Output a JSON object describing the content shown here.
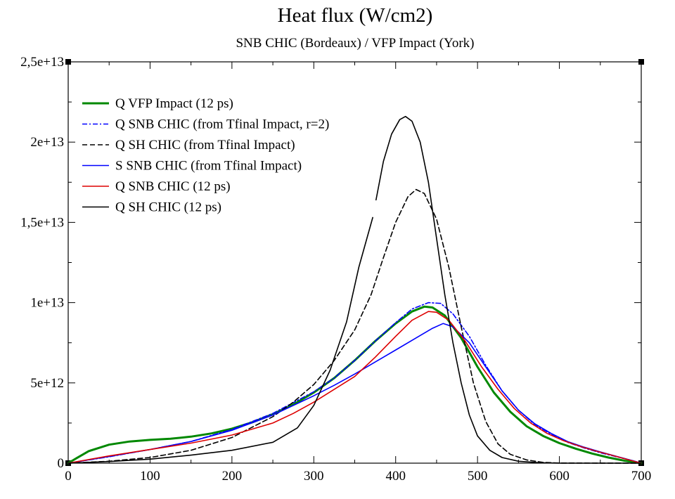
{
  "chart_data": {
    "type": "line",
    "title": "Heat flux (W/cm2)",
    "subtitle": "SNB CHIC (Bordeaux) / VFP Impact (York)",
    "xlabel": "",
    "ylabel": "",
    "xlim": [
      0,
      700
    ],
    "ylim": [
      0,
      25000000000000.0
    ],
    "x_ticks": [
      {
        "value": 0,
        "label": "0"
      },
      {
        "value": 100,
        "label": "100"
      },
      {
        "value": 200,
        "label": "200"
      },
      {
        "value": 300,
        "label": "300"
      },
      {
        "value": 400,
        "label": "400"
      },
      {
        "value": 500,
        "label": "500"
      },
      {
        "value": 600,
        "label": "600"
      },
      {
        "value": 700,
        "label": "700"
      }
    ],
    "y_ticks": [
      {
        "value": 0,
        "label": "0"
      },
      {
        "value": 5000000000000.0,
        "label": "5e+12"
      },
      {
        "value": 10000000000000.0,
        "label": "1e+13"
      },
      {
        "value": 15000000000000.0,
        "label": "1,5e+13"
      },
      {
        "value": 20000000000000.0,
        "label": "2e+13"
      },
      {
        "value": 25000000000000.0,
        "label": "2,5e+13"
      }
    ],
    "grid": false,
    "legend_position": "top-left",
    "series": [
      {
        "name": "Q VFP Impact (12 ps)",
        "color": "#008800",
        "dash": "",
        "width": 3,
        "points": [
          [
            0,
            0
          ],
          [
            10,
            300000000000.0
          ],
          [
            25,
            750000000000.0
          ],
          [
            50,
            1150000000000.0
          ],
          [
            75,
            1350000000000.0
          ],
          [
            100,
            1450000000000.0
          ],
          [
            125,
            1520000000000.0
          ],
          [
            150,
            1650000000000.0
          ],
          [
            175,
            1850000000000.0
          ],
          [
            200,
            2150000000000.0
          ],
          [
            225,
            2550000000000.0
          ],
          [
            250,
            3050000000000.0
          ],
          [
            275,
            3650000000000.0
          ],
          [
            300,
            4400000000000.0
          ],
          [
            325,
            5300000000000.0
          ],
          [
            350,
            6400000000000.0
          ],
          [
            375,
            7600000000000.0
          ],
          [
            400,
            8700000000000.0
          ],
          [
            420,
            9450000000000.0
          ],
          [
            435,
            9750000000000.0
          ],
          [
            445,
            9700000000000.0
          ],
          [
            460,
            9200000000000.0
          ],
          [
            480,
            7800000000000.0
          ],
          [
            500,
            6000000000000.0
          ],
          [
            520,
            4400000000000.0
          ],
          [
            540,
            3200000000000.0
          ],
          [
            560,
            2300000000000.0
          ],
          [
            580,
            1700000000000.0
          ],
          [
            600,
            1250000000000.0
          ],
          [
            620,
            900000000000.0
          ],
          [
            640,
            600000000000.0
          ],
          [
            660,
            350000000000.0
          ],
          [
            680,
            150000000000.0
          ],
          [
            700,
            0
          ]
        ]
      },
      {
        "name": "Q SNB CHIC (from Tfinal Impact, r=2)",
        "color": "#0000ff",
        "dash": "7,3,2,3",
        "width": 1.6,
        "points": [
          [
            0,
            0
          ],
          [
            50,
            400000000000.0
          ],
          [
            100,
            850000000000.0
          ],
          [
            150,
            1350000000000.0
          ],
          [
            200,
            2100000000000.0
          ],
          [
            250,
            3100000000000.0
          ],
          [
            300,
            4450000000000.0
          ],
          [
            325,
            5300000000000.0
          ],
          [
            350,
            6400000000000.0
          ],
          [
            375,
            7600000000000.0
          ],
          [
            400,
            8750000000000.0
          ],
          [
            420,
            9600000000000.0
          ],
          [
            440,
            10000000000000.0
          ],
          [
            455,
            9950000000000.0
          ],
          [
            470,
            9300000000000.0
          ],
          [
            490,
            7900000000000.0
          ],
          [
            510,
            6100000000000.0
          ],
          [
            530,
            4500000000000.0
          ],
          [
            550,
            3300000000000.0
          ],
          [
            570,
            2400000000000.0
          ],
          [
            590,
            1800000000000.0
          ],
          [
            610,
            1300000000000.0
          ],
          [
            630,
            950000000000.0
          ],
          [
            650,
            650000000000.0
          ],
          [
            670,
            400000000000.0
          ],
          [
            690,
            150000000000.0
          ],
          [
            700,
            0
          ]
        ]
      },
      {
        "name": "Q SH CHIC (from Tfinal Impact)",
        "color": "#000000",
        "dash": "7,4",
        "width": 1.6,
        "points": [
          [
            0,
            0
          ],
          [
            50,
            120000000000.0
          ],
          [
            100,
            350000000000.0
          ],
          [
            150,
            800000000000.0
          ],
          [
            200,
            1600000000000.0
          ],
          [
            250,
            2900000000000.0
          ],
          [
            275,
            3800000000000.0
          ],
          [
            300,
            4900000000000.0
          ],
          [
            325,
            6400000000000.0
          ],
          [
            350,
            8300000000000.0
          ],
          [
            370,
            10500000000000.0
          ],
          [
            385,
            12800000000000.0
          ],
          [
            400,
            15000000000000.0
          ],
          [
            415,
            16600000000000.0
          ],
          [
            425,
            17050000000000.0
          ],
          [
            435,
            16800000000000.0
          ],
          [
            450,
            15200000000000.0
          ],
          [
            465,
            12200000000000.0
          ],
          [
            480,
            8500000000000.0
          ],
          [
            495,
            5000000000000.0
          ],
          [
            510,
            2600000000000.0
          ],
          [
            525,
            1200000000000.0
          ],
          [
            540,
            550000000000.0
          ],
          [
            560,
            200000000000.0
          ],
          [
            580,
            50000000000.0
          ],
          [
            600,
            10000000000.0
          ],
          [
            700,
            0
          ]
        ]
      },
      {
        "name": "S SNB CHIC (from Tfinal Impact)",
        "color": "#0000ff",
        "dash": "",
        "width": 1.6,
        "points": [
          [
            0,
            0
          ],
          [
            50,
            420000000000.0
          ],
          [
            100,
            850000000000.0
          ],
          [
            150,
            1350000000000.0
          ],
          [
            200,
            2050000000000.0
          ],
          [
            250,
            3000000000000.0
          ],
          [
            300,
            4200000000000.0
          ],
          [
            325,
            4850000000000.0
          ],
          [
            350,
            5550000000000.0
          ],
          [
            375,
            6300000000000.0
          ],
          [
            400,
            7050000000000.0
          ],
          [
            425,
            7800000000000.0
          ],
          [
            445,
            8400000000000.0
          ],
          [
            458,
            8700000000000.0
          ],
          [
            470,
            8500000000000.0
          ],
          [
            490,
            7500000000000.0
          ],
          [
            510,
            6000000000000.0
          ],
          [
            530,
            4500000000000.0
          ],
          [
            550,
            3300000000000.0
          ],
          [
            570,
            2450000000000.0
          ],
          [
            590,
            1850000000000.0
          ],
          [
            610,
            1350000000000.0
          ],
          [
            630,
            1000000000000.0
          ],
          [
            650,
            700000000000.0
          ],
          [
            670,
            420000000000.0
          ],
          [
            690,
            150000000000.0
          ],
          [
            700,
            0
          ]
        ]
      },
      {
        "name": "Q SNB CHIC (12 ps)",
        "color": "#dd0000",
        "dash": "",
        "width": 1.6,
        "points": [
          [
            0,
            0
          ],
          [
            50,
            450000000000.0
          ],
          [
            100,
            850000000000.0
          ],
          [
            150,
            1250000000000.0
          ],
          [
            200,
            1750000000000.0
          ],
          [
            250,
            2500000000000.0
          ],
          [
            275,
            3100000000000.0
          ],
          [
            300,
            3800000000000.0
          ],
          [
            325,
            4600000000000.0
          ],
          [
            350,
            5400000000000.0
          ],
          [
            375,
            6600000000000.0
          ],
          [
            400,
            7900000000000.0
          ],
          [
            420,
            8900000000000.0
          ],
          [
            440,
            9450000000000.0
          ],
          [
            450,
            9400000000000.0
          ],
          [
            465,
            8900000000000.0
          ],
          [
            485,
            7600000000000.0
          ],
          [
            505,
            6000000000000.0
          ],
          [
            525,
            4600000000000.0
          ],
          [
            545,
            3400000000000.0
          ],
          [
            565,
            2500000000000.0
          ],
          [
            585,
            1850000000000.0
          ],
          [
            605,
            1400000000000.0
          ],
          [
            625,
            1050000000000.0
          ],
          [
            645,
            750000000000.0
          ],
          [
            665,
            480000000000.0
          ],
          [
            685,
            200000000000.0
          ],
          [
            700,
            0
          ]
        ]
      },
      {
        "name": "Q SH CHIC (12 ps)",
        "color": "#000000",
        "dash": "",
        "width": 1.6,
        "points": [
          [
            0,
            0
          ],
          [
            50,
            100000000000.0
          ],
          [
            100,
            250000000000.0
          ],
          [
            150,
            500000000000.0
          ],
          [
            200,
            800000000000.0
          ],
          [
            250,
            1300000000000.0
          ],
          [
            280,
            2200000000000.0
          ],
          [
            300,
            3600000000000.0
          ],
          [
            320,
            5800000000000.0
          ],
          [
            340,
            8800000000000.0
          ],
          [
            355,
            12200000000000.0
          ],
          [
            372,
            15300000000000.0
          ],
          [
            null,
            null
          ],
          [
            376,
            16400000000000.0
          ],
          [
            385,
            18800000000000.0
          ],
          [
            395,
            20500000000000.0
          ],
          [
            405,
            21400000000000.0
          ],
          [
            412,
            21600000000000.0
          ],
          [
            420,
            21300000000000.0
          ],
          [
            430,
            20000000000000.0
          ],
          [
            440,
            17500000000000.0
          ],
          [
            450,
            14000000000000.0
          ],
          [
            460,
            10500000000000.0
          ],
          [
            470,
            7500000000000.0
          ],
          [
            480,
            5000000000000.0
          ],
          [
            490,
            3000000000000.0
          ],
          [
            500,
            1700000000000.0
          ],
          [
            515,
            800000000000.0
          ],
          [
            530,
            350000000000.0
          ],
          [
            550,
            120000000000.0
          ],
          [
            575,
            30000000000.0
          ],
          [
            600,
            0
          ],
          [
            700,
            0
          ]
        ]
      }
    ]
  }
}
